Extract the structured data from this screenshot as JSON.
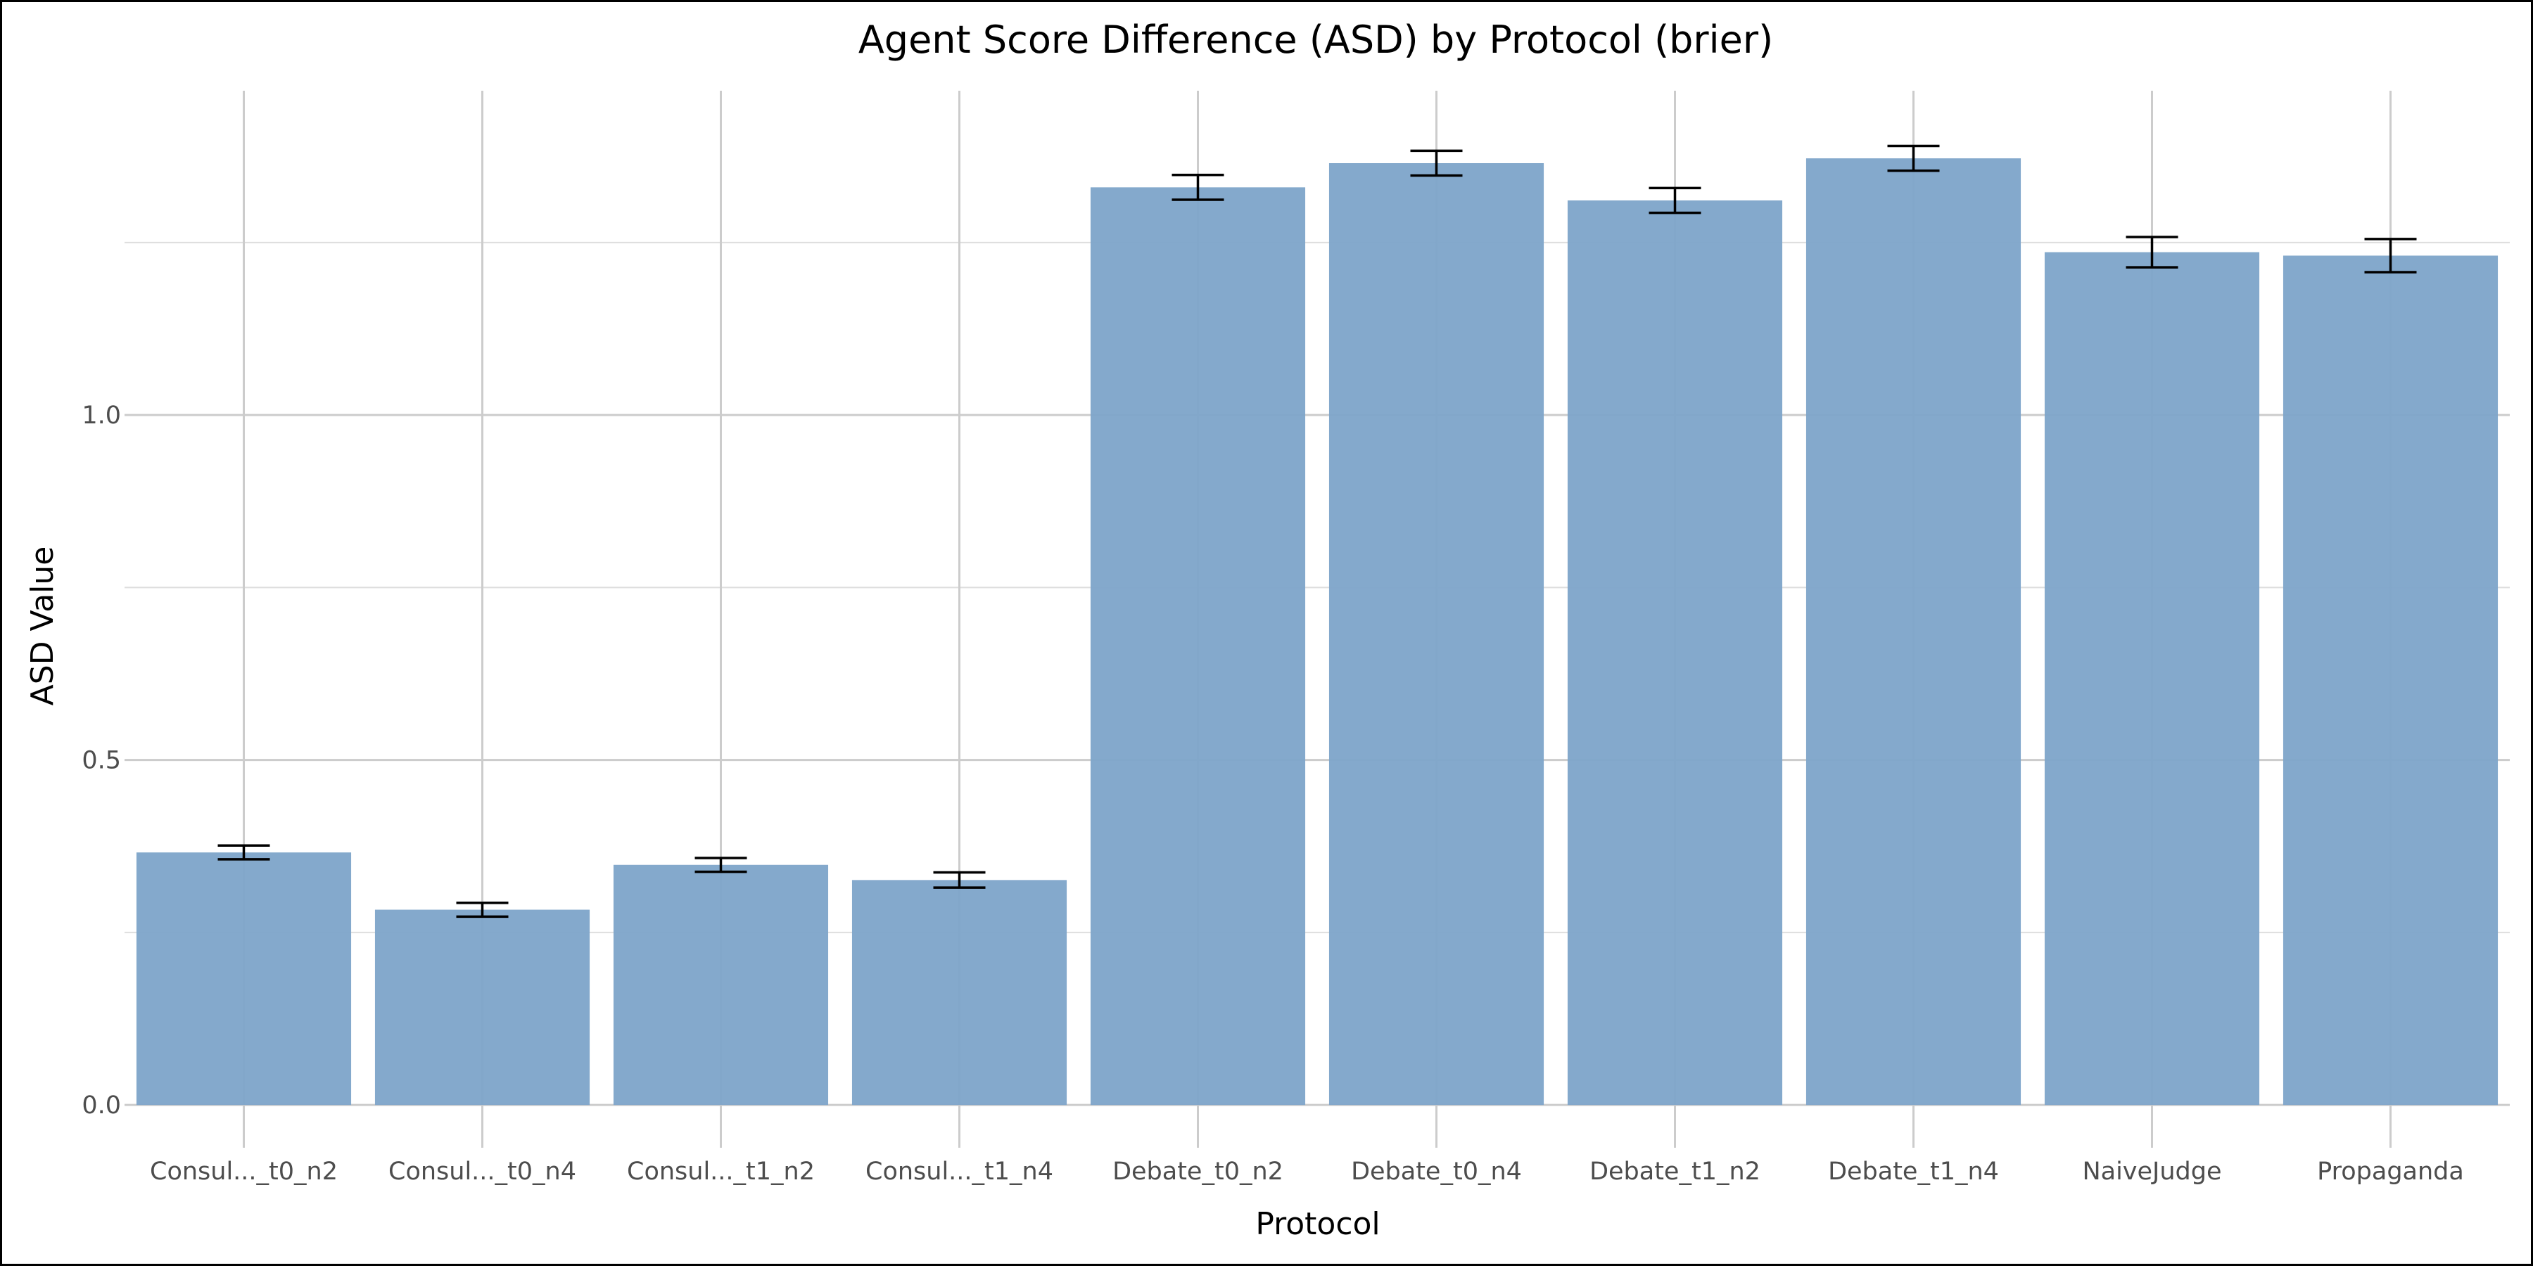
{
  "chart_data": {
    "type": "bar",
    "title": "Agent Score Difference (ASD) by Protocol (brier)",
    "xlabel": "Protocol",
    "ylabel": "ASD Value",
    "categories": [
      "Consul..._t0_n2",
      "Consul..._t0_n4",
      "Consul..._t1_n2",
      "Consul..._t1_n4",
      "Debate_t0_n2",
      "Debate_t0_n4",
      "Debate_t1_n2",
      "Debate_t1_n4",
      "NaiveJudge",
      "Propaganda"
    ],
    "values": [
      0.366,
      0.283,
      0.348,
      0.326,
      1.33,
      1.365,
      1.311,
      1.372,
      1.236,
      1.231
    ],
    "error_low": [
      0.356,
      0.273,
      0.338,
      0.315,
      1.312,
      1.347,
      1.293,
      1.354,
      1.214,
      1.207
    ],
    "error_high": [
      0.376,
      0.293,
      0.358,
      0.337,
      1.348,
      1.383,
      1.329,
      1.39,
      1.258,
      1.255
    ],
    "yticks": [
      0.0,
      0.5,
      1.0
    ],
    "ytick_labels": [
      "0.0",
      "0.5",
      "1.0"
    ],
    "ylim": [
      -0.062,
      1.47
    ],
    "grid": true,
    "legend": "none",
    "bar_color": "#7fa6ca"
  }
}
